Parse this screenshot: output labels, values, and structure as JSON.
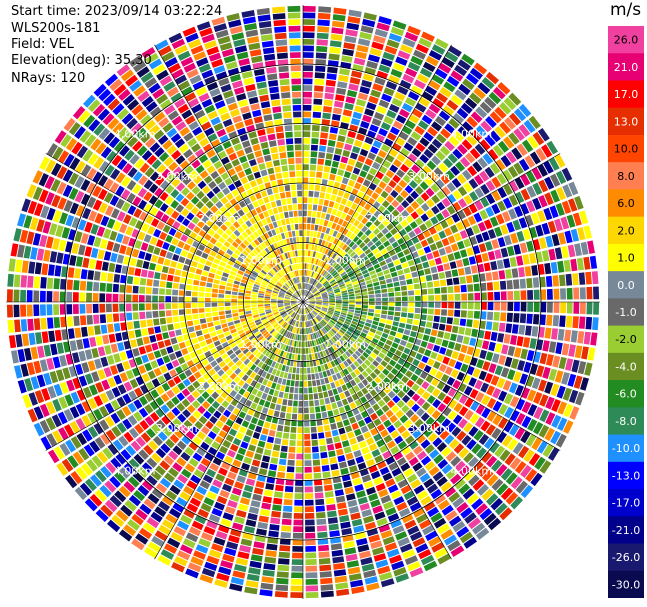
{
  "header": {
    "start_time": "Start time: 2023/09/14 03:22:24",
    "instrument": "WLS200s-181",
    "field": "Field: VEL",
    "elevation": "Elevation(deg): 35.30",
    "nrays": "NRays: 120"
  },
  "chart_data": {
    "type": "heatmap",
    "projection": "polar PPI",
    "field": "VEL",
    "n_rays": 120,
    "range_rings_km": [
      1.0,
      2.0,
      3.0,
      4.0
    ],
    "range_ring_labels": [
      "1.00km",
      "2.00km",
      "3.00km",
      "4.00km"
    ],
    "colorbar": {
      "unit": "m/s",
      "tick_labels": [
        "26.0",
        "21.0",
        "17.0",
        "13.0",
        "10.0",
        "8.0",
        "6.0",
        "2.0",
        "1.0",
        "0.0",
        "-1.0",
        "-2.0",
        "-4.0",
        "-6.0",
        "-8.0",
        "-10.0",
        "-13.0",
        "-17.0",
        "-21.0",
        "-26.0",
        "-30.0"
      ],
      "colors": [
        "#f040a0",
        "#e60073",
        "#ff0000",
        "#e62e00",
        "#ff4500",
        "#ff7f50",
        "#ff8c00",
        "#ffd700",
        "#ffff00",
        "#778899",
        "#696969",
        "#9acd32",
        "#6b8e23",
        "#228b22",
        "#2e8b57",
        "#1e90ff",
        "#0000ff",
        "#0000cd",
        "#00008b",
        "#191970",
        "#0a0a50"
      ]
    }
  }
}
